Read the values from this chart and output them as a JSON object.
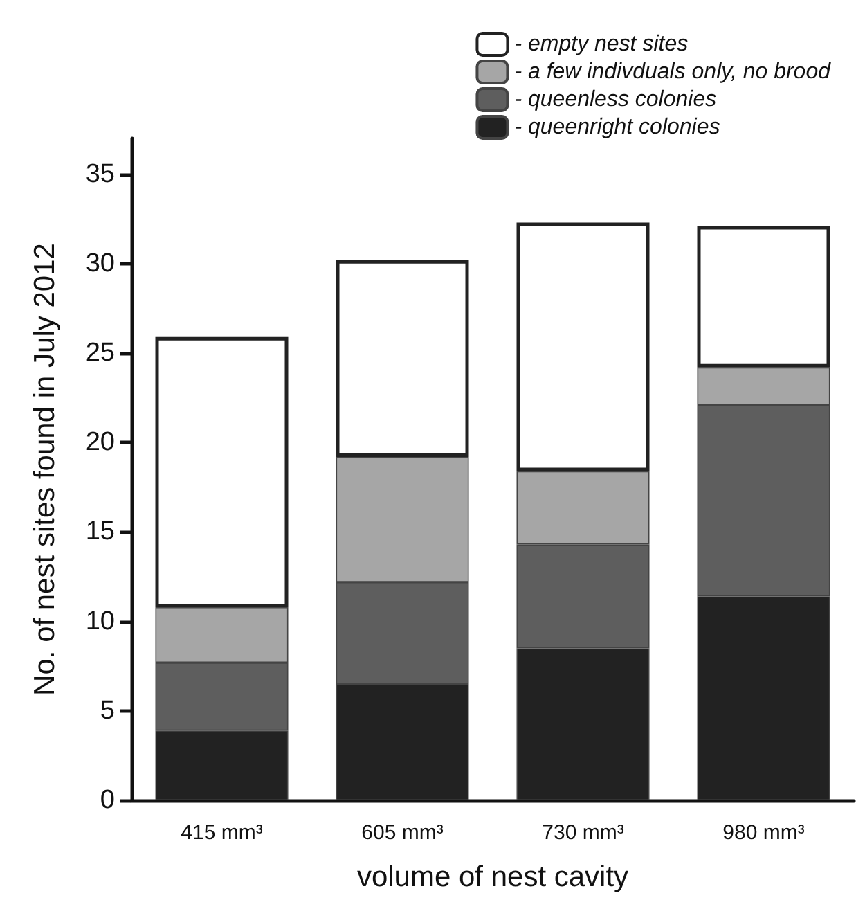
{
  "chart_data": {
    "type": "bar",
    "stacked": true,
    "xlabel": "volume of nest cavity",
    "ylabel": "No. of nest sites found in July 2012",
    "categories": [
      "415 mm³",
      "605 mm³",
      "730 mm³",
      "980 mm³"
    ],
    "series": [
      {
        "name": "- queenright colonies",
        "color": "#222222",
        "values": [
          3.9,
          6.5,
          8.5,
          11.4
        ]
      },
      {
        "name": "- queenless colonies",
        "color": "#5e5e5e",
        "values": [
          3.8,
          5.7,
          5.8,
          10.7
        ]
      },
      {
        "name": "- a few indivduals only, no brood",
        "color": "#a6a6a6",
        "values": [
          3.1,
          7.0,
          4.1,
          2.1
        ]
      },
      {
        "name": "- empty nest sites",
        "color": "#ffffff",
        "values": [
          15.1,
          11.0,
          13.9,
          7.9
        ]
      }
    ],
    "ylim": [
      0,
      37
    ],
    "yticks": [
      0,
      5,
      10,
      15,
      20,
      25,
      30,
      35
    ],
    "grid": false,
    "legend": "top right"
  }
}
